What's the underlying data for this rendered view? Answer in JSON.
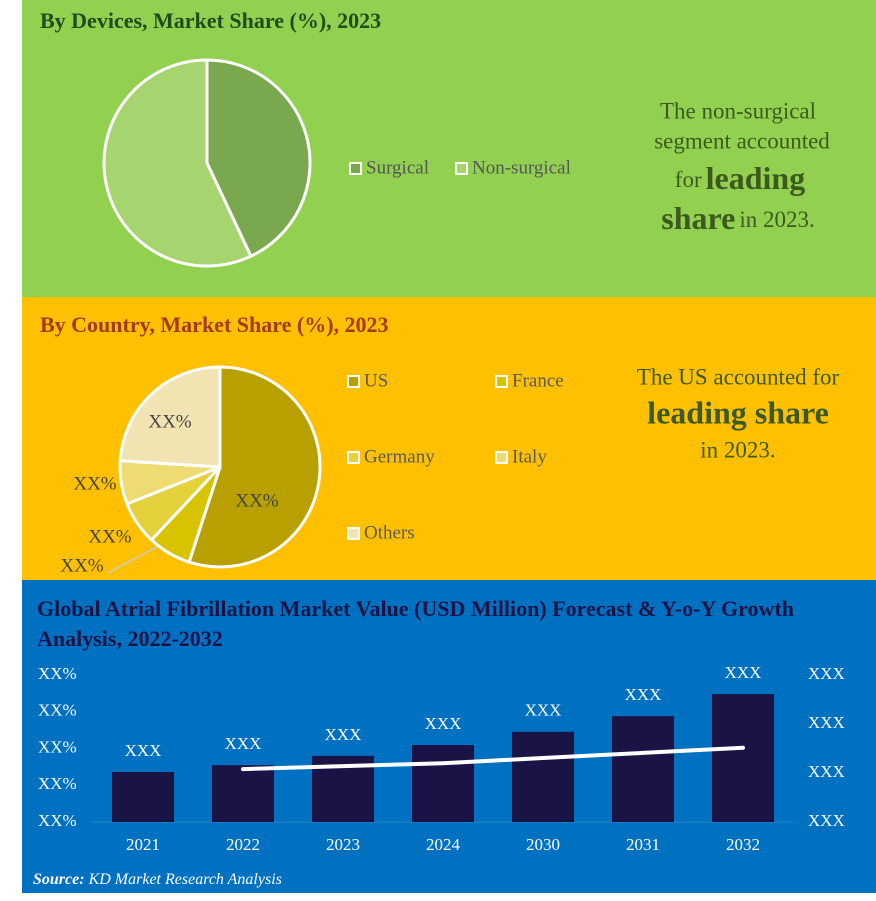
{
  "chart_data": [
    {
      "type": "pie",
      "title": "By Devices, Market Share (%), 2023",
      "categories": [
        "Surgical",
        "Non-surgical"
      ],
      "values": [
        43,
        57
      ],
      "colors": [
        "#7aa84e",
        "#a6d46f"
      ],
      "annotation": [
        "The non-surgical",
        "segment accounted",
        "for",
        "leading",
        "share",
        "in 2023."
      ]
    },
    {
      "type": "pie",
      "title": "By Country, Market Share (%), 2023",
      "categories": [
        "US",
        "France",
        "Germany",
        "Italy",
        "Others"
      ],
      "values": [
        55,
        7,
        7,
        7,
        24
      ],
      "value_labels": [
        "XX%",
        "XX%",
        "XX%",
        "XX%",
        "XX%"
      ],
      "colors": [
        "#b8a000",
        "#d8c300",
        "#e4d13c",
        "#eedc72",
        "#f2e3b3"
      ],
      "annotation": [
        "The US accounted for",
        "leading share",
        "in 2023."
      ]
    },
    {
      "type": "bar",
      "title": "Global Atrial Fibrillation Market Value (USD Million) Forecast & Y-o-Y Growth Analysis, 2022-2032",
      "categories": [
        "2021",
        "2022",
        "2023",
        "2024",
        "2030",
        "2031",
        "2032"
      ],
      "series": [
        {
          "type": "bar",
          "axis": "y2",
          "color": "#1a1446",
          "values": [
            102,
            116,
            135,
            157,
            184,
            216,
            261
          ],
          "value_labels": [
            "XXX",
            "XXX",
            "XXX",
            "XXX",
            "XXX",
            "XXX",
            "XXX"
          ]
        },
        {
          "type": "line",
          "color": "#ffffff",
          "values": [
            null,
            7.2,
            7.6,
            8.0,
            8.7,
            9.4,
            10.1
          ]
        }
      ],
      "ylim": [
        0,
        20
      ],
      "yticks": [
        {
          "value": 0,
          "label": "XX%"
        },
        {
          "value": 5,
          "label": "XX%"
        },
        {
          "value": 10,
          "label": "XX%"
        },
        {
          "value": 15,
          "label": "XX%"
        },
        {
          "value": 20,
          "label": "XX%"
        }
      ],
      "y2lim": [
        0,
        300
      ],
      "y2ticks": [
        {
          "value": 0,
          "label": "XXX"
        },
        {
          "value": 100,
          "label": "XXX"
        },
        {
          "value": 200,
          "label": "XXX"
        },
        {
          "value": 300,
          "label": "XXX"
        }
      ]
    }
  ],
  "source": {
    "label": "Source:",
    "text": "KD Market Research Analysis"
  }
}
